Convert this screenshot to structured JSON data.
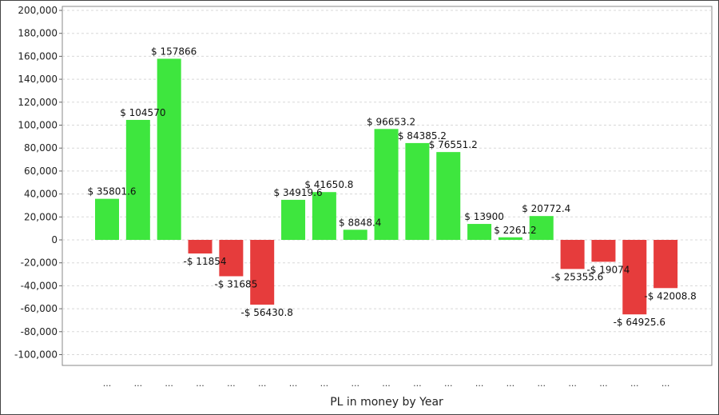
{
  "chart_data": {
    "type": "bar",
    "title": "",
    "xlabel": "PL in money by Year",
    "ylabel": "",
    "ylim": [
      -110000,
      200000
    ],
    "yticks": [
      200000,
      180000,
      160000,
      140000,
      120000,
      100000,
      80000,
      60000,
      40000,
      20000,
      0,
      -20000,
      -40000,
      -60000,
      -80000,
      -100000
    ],
    "ytick_labels": [
      "200,000",
      "180,000",
      "160,000",
      "140,000",
      "120,000",
      "100,000",
      "80,000",
      "60,000",
      "40,000",
      "20,000",
      "0",
      "-20,000",
      "-40,000",
      "-60,000",
      "-80,000",
      "-100,000"
    ],
    "grid": true,
    "legend": "none",
    "colors": {
      "positive": "#3ee63e",
      "negative": "#e63c3c"
    },
    "categories": [
      "...",
      "...",
      "...",
      "...",
      "...",
      "...",
      "...",
      "...",
      "...",
      "...",
      "...",
      "...",
      "...",
      "...",
      "...",
      "...",
      "...",
      "...",
      "..."
    ],
    "values": [
      35801.6,
      104570,
      157866,
      -11854,
      -31685,
      -56430.8,
      34919.6,
      41650.8,
      8848.4,
      96653.2,
      84385.2,
      76551.2,
      13900,
      2261.2,
      20772.4,
      -25355.6,
      -19074,
      -64925.6,
      -42008.8
    ],
    "data_labels": [
      "$ 35801.6",
      "$ 104570",
      "$ 157866",
      "-$ 11854",
      "-$ 31685",
      "-$ 56430.8",
      "$ 34919.6",
      "$ 41650.8",
      "$ 8848.4",
      "$ 96653.2",
      "$ 84385.2",
      "$ 76551.2",
      "$ 13900",
      "$ 2261.2",
      "$ 20772.4",
      "-$ 25355.6",
      "-$ 19074",
      "-$ 64925.6",
      "-$ 42008.8"
    ]
  }
}
